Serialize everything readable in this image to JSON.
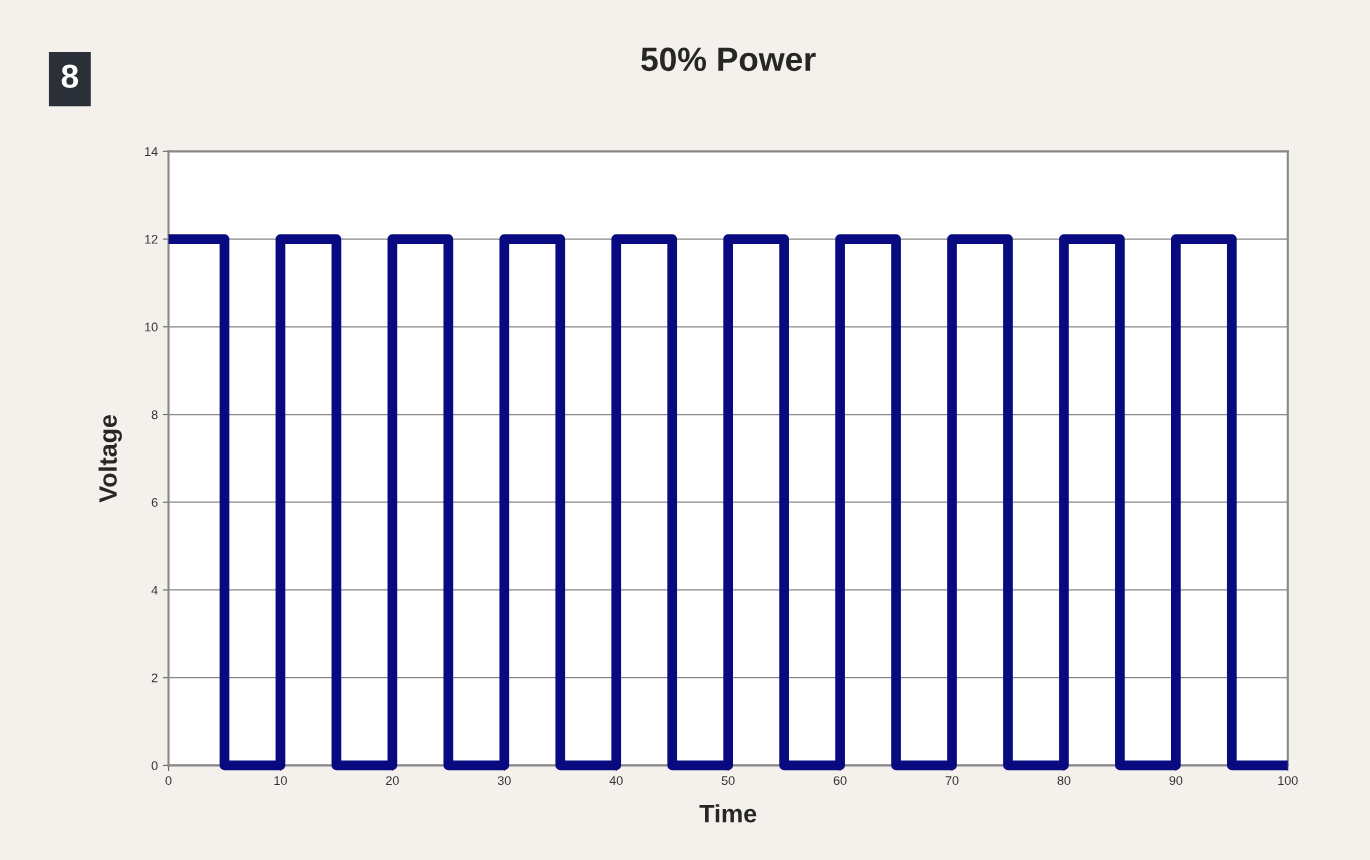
{
  "chart_data": {
    "type": "line",
    "title": "50% Power",
    "xlabel": "Time",
    "ylabel": "Voltage",
    "annotations": [
      "8"
    ],
    "x": [
      0,
      5,
      5,
      10,
      10,
      15,
      15,
      20,
      20,
      25,
      25,
      30,
      30,
      35,
      35,
      40,
      40,
      45,
      45,
      50,
      50,
      55,
      55,
      60,
      60,
      65,
      65,
      70,
      70,
      75,
      75,
      80,
      80,
      85,
      85,
      90,
      90,
      95,
      95,
      100
    ],
    "series": [
      {
        "color": "#0a0a80",
        "values": [
          12,
          12,
          0,
          0,
          12,
          12,
          0,
          0,
          12,
          12,
          0,
          0,
          12,
          12,
          0,
          0,
          12,
          12,
          0,
          0,
          12,
          12,
          0,
          0,
          12,
          12,
          0,
          0,
          12,
          12,
          0,
          0,
          12,
          12,
          0,
          0,
          12,
          12,
          0,
          0
        ]
      }
    ],
    "xlim": [
      0,
      100
    ],
    "xticks": [
      0,
      10,
      20,
      30,
      40,
      50,
      60,
      70,
      80,
      90,
      100
    ],
    "ylim": [
      0,
      14
    ],
    "yticks": [
      0,
      2,
      4,
      6,
      8,
      10,
      12,
      14
    ],
    "grid": "y",
    "legend": false,
    "marker": "none",
    "line_style": "solid"
  }
}
